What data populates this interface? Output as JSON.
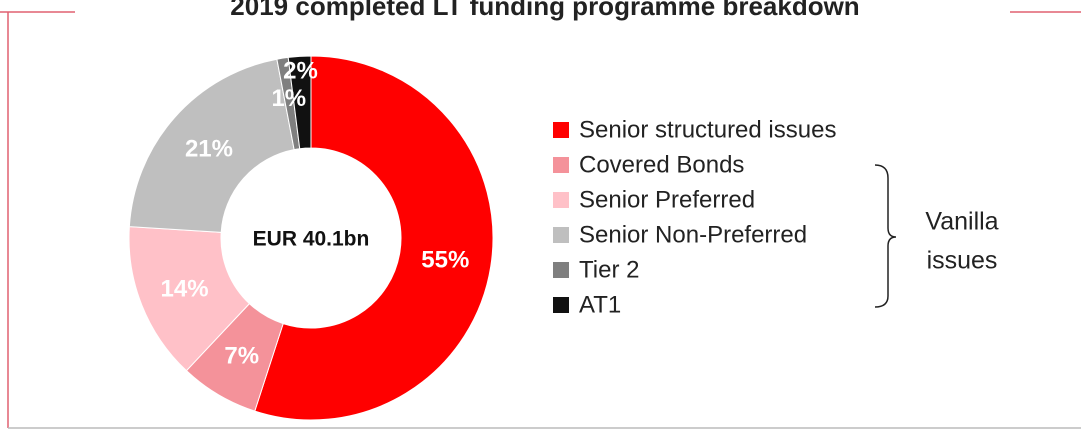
{
  "chart_data": {
    "type": "donut",
    "title": "2019 completed LT funding programme breakdown",
    "center_label": "EUR 40.1bn",
    "categories": [
      "Senior structured issues",
      "Covered Bonds",
      "Senior Preferred",
      "Senior Non-Preferred",
      "Tier 2",
      "AT1"
    ],
    "values": [
      55,
      7,
      14,
      21,
      1,
      2
    ],
    "value_labels": [
      "55%",
      "7%",
      "14%",
      "21%",
      "1%",
      "2%"
    ],
    "colors": [
      "#ff0000",
      "#f4929a",
      "#ffc1c8",
      "#bfbfbf",
      "#7f7f7f",
      "#111111"
    ],
    "annotation": [
      "Vanilla",
      "issues"
    ]
  }
}
